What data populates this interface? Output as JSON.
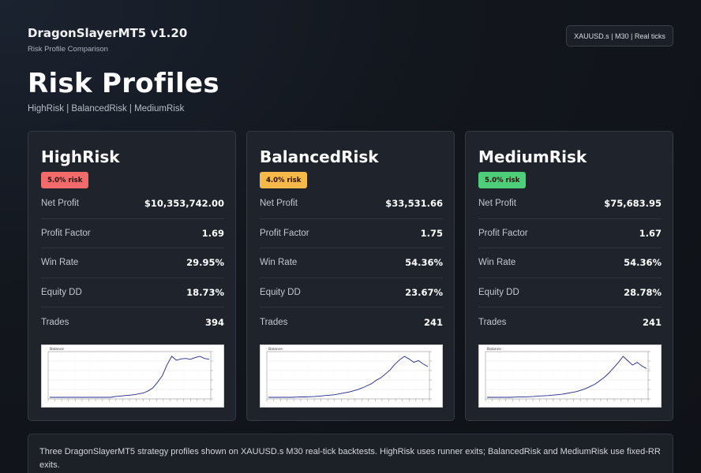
{
  "header": {
    "app_title": "DragonSlayerMT5 v1.20",
    "app_subtitle": "Risk Profile Comparison",
    "context_badge": "XAUUSD.s | M30 | Real ticks",
    "page_title": "Risk Profiles",
    "page_subtitle": "HighRisk | BalancedRisk | MediumRisk"
  },
  "metric_labels": {
    "net_profit": "Net Profit",
    "profit_factor": "Profit Factor",
    "win_rate": "Win Rate",
    "equity_dd": "Equity DD",
    "trades": "Trades"
  },
  "profiles": [
    {
      "name": "HighRisk",
      "risk_label": "5.0% risk",
      "risk_color": "#f26b6b",
      "net_profit": "$10,353,742.00",
      "profit_factor": "1.69",
      "win_rate": "29.95%",
      "equity_dd": "18.73%",
      "trades": "394",
      "chart_label": "Balance",
      "equity_curve": [
        0,
        0,
        0,
        0,
        0,
        0,
        0,
        0,
        0,
        0,
        0,
        0,
        0,
        0,
        0.2,
        0.3,
        0.4,
        0.5,
        0.6,
        0.8,
        1.0,
        1.5,
        2.2,
        3.5,
        5,
        7.5,
        9.5,
        8.6,
        8.9,
        9.0,
        8.8,
        9.2,
        9.5,
        9.0,
        8.8
      ]
    },
    {
      "name": "BalancedRisk",
      "risk_label": "4.0% risk",
      "risk_color": "#f5b94a",
      "net_profit": "$33,531.66",
      "profit_factor": "1.75",
      "win_rate": "54.36%",
      "equity_dd": "23.67%",
      "trades": "241",
      "chart_label": "Balance",
      "equity_curve": [
        0,
        0,
        0,
        0,
        0,
        0,
        0.05,
        0.1,
        0.1,
        0.15,
        0.2,
        0.3,
        0.4,
        0.5,
        0.6,
        0.8,
        1.0,
        1.2,
        1.5,
        1.8,
        2.2,
        2.7,
        3.2,
        4.0,
        4.6,
        5.5,
        6.5,
        7.8,
        8.8,
        9.6,
        9.0,
        8.2,
        8.6,
        7.8,
        7.2
      ]
    },
    {
      "name": "MediumRisk",
      "risk_label": "5.0% risk",
      "risk_color": "#4fce7a",
      "net_profit": "$75,683.95",
      "profit_factor": "1.67",
      "win_rate": "54.36%",
      "equity_dd": "28.78%",
      "trades": "241",
      "chart_label": "Balance",
      "equity_curve": [
        0,
        0,
        0,
        0,
        0,
        0,
        0.05,
        0.1,
        0.1,
        0.15,
        0.2,
        0.3,
        0.35,
        0.4,
        0.5,
        0.6,
        0.7,
        0.9,
        1.1,
        1.3,
        1.6,
        2.0,
        2.5,
        3.0,
        3.8,
        4.6,
        5.6,
        6.8,
        8.0,
        9.4,
        8.4,
        7.4,
        8.0,
        7.2,
        6.6
      ]
    }
  ],
  "footer": {
    "note": "Three DragonSlayerMT5 strategy profiles shown on XAUUSD.s M30 real-tick backtests. HighRisk uses runner exits; BalancedRisk and MediumRisk use fixed-RR exits."
  }
}
